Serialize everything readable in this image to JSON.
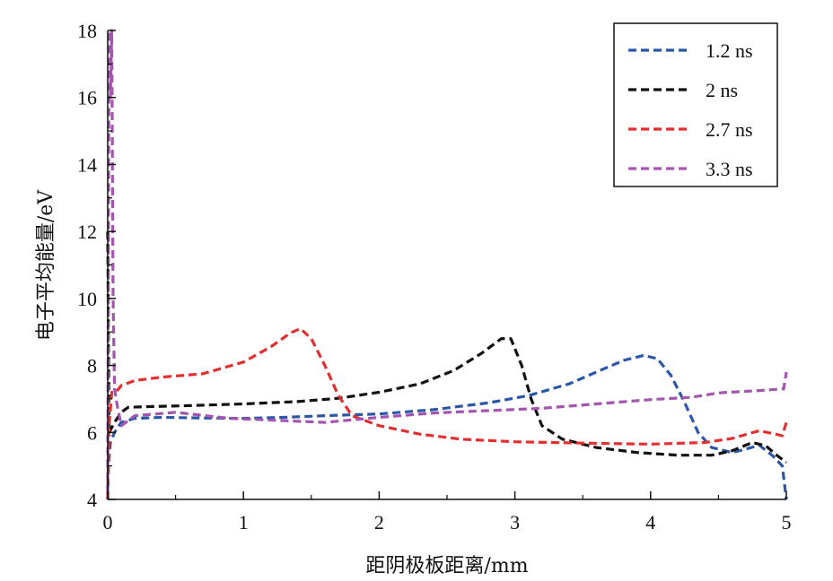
{
  "chart_data": {
    "type": "line",
    "title": "",
    "xlabel": "距阴极板距离/mm",
    "ylabel": "电子平均能量/eV",
    "xlim": [
      0,
      5
    ],
    "ylim": [
      4,
      18
    ],
    "xticks": [
      "0",
      "1",
      "2",
      "3",
      "4",
      "5"
    ],
    "yticks": [
      "4",
      "6",
      "8",
      "10",
      "12",
      "14",
      "16",
      "18"
    ],
    "grid": false,
    "legend_position": "top-right",
    "series": [
      {
        "name": "1.2 ns",
        "color": "#2a57a8",
        "points": [
          [
            0.0,
            4.0
          ],
          [
            0.005,
            5.0
          ],
          [
            0.02,
            5.7
          ],
          [
            0.05,
            6.0
          ],
          [
            0.1,
            6.3
          ],
          [
            0.2,
            6.42
          ],
          [
            0.4,
            6.45
          ],
          [
            0.7,
            6.43
          ],
          [
            1.0,
            6.42
          ],
          [
            1.3,
            6.45
          ],
          [
            1.6,
            6.5
          ],
          [
            2.0,
            6.55
          ],
          [
            2.4,
            6.68
          ],
          [
            2.8,
            6.88
          ],
          [
            3.1,
            7.1
          ],
          [
            3.4,
            7.45
          ],
          [
            3.6,
            7.8
          ],
          [
            3.8,
            8.15
          ],
          [
            3.95,
            8.3
          ],
          [
            4.05,
            8.2
          ],
          [
            4.15,
            7.7
          ],
          [
            4.25,
            6.9
          ],
          [
            4.35,
            6.0
          ],
          [
            4.45,
            5.55
          ],
          [
            4.6,
            5.4
          ],
          [
            4.7,
            5.5
          ],
          [
            4.8,
            5.62
          ],
          [
            4.9,
            5.3
          ],
          [
            4.97,
            5.0
          ],
          [
            5.0,
            4.0
          ]
        ]
      },
      {
        "name": "2 ns",
        "color": "#111111",
        "points": [
          [
            0.0,
            12.0
          ],
          [
            0.01,
            6.0
          ],
          [
            0.05,
            6.3
          ],
          [
            0.1,
            6.6
          ],
          [
            0.15,
            6.75
          ],
          [
            0.3,
            6.77
          ],
          [
            0.6,
            6.8
          ],
          [
            1.0,
            6.85
          ],
          [
            1.4,
            6.92
          ],
          [
            1.7,
            7.02
          ],
          [
            2.0,
            7.2
          ],
          [
            2.3,
            7.45
          ],
          [
            2.55,
            7.85
          ],
          [
            2.75,
            8.35
          ],
          [
            2.9,
            8.8
          ],
          [
            2.97,
            8.8
          ],
          [
            3.05,
            8.0
          ],
          [
            3.12,
            7.0
          ],
          [
            3.2,
            6.2
          ],
          [
            3.35,
            5.8
          ],
          [
            3.6,
            5.55
          ],
          [
            3.9,
            5.4
          ],
          [
            4.2,
            5.32
          ],
          [
            4.45,
            5.32
          ],
          [
            4.6,
            5.45
          ],
          [
            4.75,
            5.7
          ],
          [
            4.85,
            5.6
          ],
          [
            4.92,
            5.35
          ],
          [
            5.0,
            5.1
          ]
        ]
      },
      {
        "name": "2.7 ns",
        "color": "#e03030",
        "points": [
          [
            0.0,
            4.0
          ],
          [
            0.01,
            6.2
          ],
          [
            0.03,
            7.2
          ],
          [
            0.06,
            7.2
          ],
          [
            0.1,
            7.4
          ],
          [
            0.2,
            7.55
          ],
          [
            0.4,
            7.65
          ],
          [
            0.7,
            7.75
          ],
          [
            1.0,
            8.1
          ],
          [
            1.2,
            8.55
          ],
          [
            1.35,
            8.98
          ],
          [
            1.42,
            9.1
          ],
          [
            1.5,
            8.8
          ],
          [
            1.6,
            8.0
          ],
          [
            1.7,
            7.1
          ],
          [
            1.8,
            6.5
          ],
          [
            2.0,
            6.2
          ],
          [
            2.3,
            5.95
          ],
          [
            2.6,
            5.8
          ],
          [
            3.0,
            5.72
          ],
          [
            3.5,
            5.68
          ],
          [
            4.0,
            5.65
          ],
          [
            4.4,
            5.7
          ],
          [
            4.6,
            5.82
          ],
          [
            4.8,
            6.05
          ],
          [
            4.92,
            5.95
          ],
          [
            4.97,
            5.9
          ],
          [
            5.0,
            6.3
          ]
        ]
      },
      {
        "name": "3.3 ns",
        "color": "#a455b0",
        "points": [
          [
            0.0,
            4.2
          ],
          [
            0.01,
            18.0
          ],
          [
            0.02,
            16.0
          ],
          [
            0.03,
            18.0
          ],
          [
            0.04,
            10.0
          ],
          [
            0.05,
            7.3
          ],
          [
            0.07,
            6.8
          ],
          [
            0.1,
            6.2
          ],
          [
            0.2,
            6.5
          ],
          [
            0.5,
            6.6
          ],
          [
            0.9,
            6.42
          ],
          [
            1.3,
            6.35
          ],
          [
            1.6,
            6.3
          ],
          [
            2.0,
            6.45
          ],
          [
            2.4,
            6.58
          ],
          [
            2.8,
            6.65
          ],
          [
            3.2,
            6.72
          ],
          [
            3.6,
            6.85
          ],
          [
            4.0,
            6.98
          ],
          [
            4.3,
            7.05
          ],
          [
            4.5,
            7.18
          ],
          [
            4.8,
            7.25
          ],
          [
            4.98,
            7.3
          ],
          [
            5.0,
            7.8
          ]
        ]
      }
    ]
  }
}
